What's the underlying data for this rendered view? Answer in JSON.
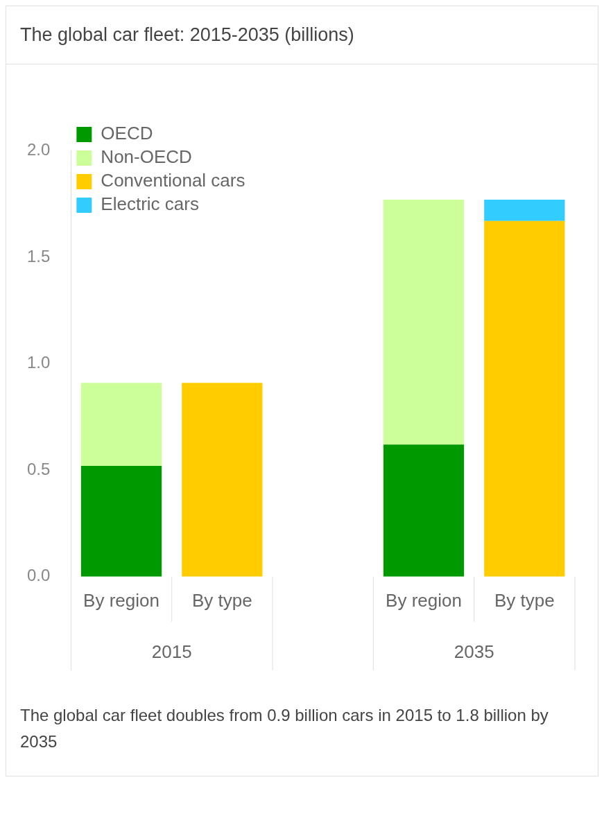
{
  "chart_data": {
    "type": "bar",
    "title": "The global car fleet: 2015-2035 (billions)",
    "stacked": true,
    "categories": [
      "By region",
      "By type",
      null,
      "By region",
      "By type"
    ],
    "series": [
      {
        "name": "OECD",
        "color": "#009900",
        "values": [
          0.52,
          null,
          null,
          0.62,
          null
        ]
      },
      {
        "name": "Non-OECD",
        "color": "#ccff99",
        "values": [
          0.39,
          null,
          null,
          1.15,
          null
        ]
      },
      {
        "name": "Conventional cars",
        "color": "#ffcc00",
        "values": [
          null,
          0.91,
          null,
          null,
          1.67
        ]
      },
      {
        "name": "Electric cars",
        "color": "#33ccff",
        "values": [
          null,
          null,
          null,
          null,
          0.1
        ]
      }
    ],
    "ylim": [
      0,
      2
    ],
    "yticks": [
      {
        "value": 0,
        "label": "0.0"
      },
      0.5,
      {
        "value": 1,
        "label": "1.0"
      },
      1.5,
      {
        "value": 2,
        "label": "2.0"
      }
    ],
    "legend": "top left",
    "annotations": [
      "2015",
      "2035",
      "The global car fleet doubles from 0.9 billion cars in 2015 to 1.8 billion by 2035"
    ]
  }
}
